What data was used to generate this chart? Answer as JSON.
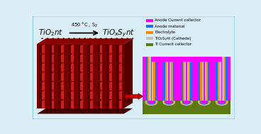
{
  "bg_color": "#daeef8",
  "border_color": "#5ab4e0",
  "legend_items": [
    {
      "label": "Anode Current collector",
      "color": "#ff00ff"
    },
    {
      "label": "Anode material",
      "color": "#1a6fff"
    },
    {
      "label": "Electrolyte",
      "color": "#ff8800"
    },
    {
      "label": "TiO₂Sᵧnt (Cathode)",
      "color": "#c0c0c0"
    },
    {
      "label": "Ti Current collector",
      "color": "#5a7a10"
    }
  ],
  "arrow_color": "#cc0000",
  "magenta": "#ff00ff",
  "blue": "#1a6fff",
  "orange": "#ff8800",
  "gray": "#c0c0c0",
  "green": "#5a7a10",
  "dark_green": "#3a5a00",
  "tube_dark": "#5a0000",
  "tube_mid": "#aa0000",
  "tube_light": "#cc2020",
  "tube_top_dark": "#220000",
  "block_front": "#7a0000",
  "block_right": "#550000",
  "block_top": "#8b0000",
  "block_bottom": "#440000"
}
